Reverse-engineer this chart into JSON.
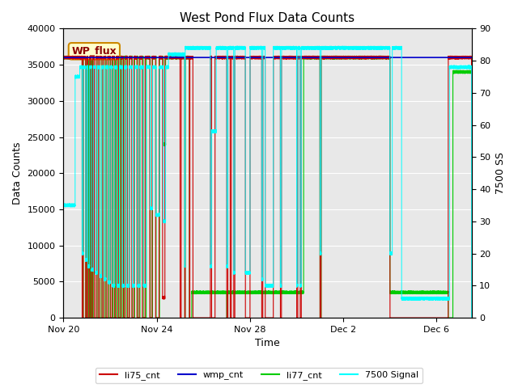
{
  "title": "West Pond Flux Data Counts",
  "xlabel": "Time",
  "ylabel_left": "Data Counts",
  "ylabel_right": "7500 SS",
  "ylim_left": [
    0,
    40000
  ],
  "ylim_right": [
    0,
    90
  ],
  "fig_bg_color": "#ffffff",
  "plot_bg_color": "#e8e8e8",
  "annotation_text": "WP_flux",
  "annotation_bg": "#ffffcc",
  "annotation_border": "#cc8800",
  "annotation_text_color": "#8b0000",
  "x_tick_labels": [
    "Nov 20",
    "Nov 24",
    "Nov 28",
    "Dec 2",
    "Dec 6"
  ],
  "x_tick_positions": [
    0,
    4,
    8,
    12,
    16
  ],
  "xlim": [
    0,
    17.5
  ],
  "wmp_cnt_value": 36000,
  "colors": {
    "li75": "#cc0000",
    "wmp": "#0000cc",
    "li77": "#00cc00",
    "sig": "cyan"
  },
  "legend_labels": [
    "li75_cnt",
    "wmp_cnt",
    "li77_cnt",
    "7500 Signal"
  ]
}
